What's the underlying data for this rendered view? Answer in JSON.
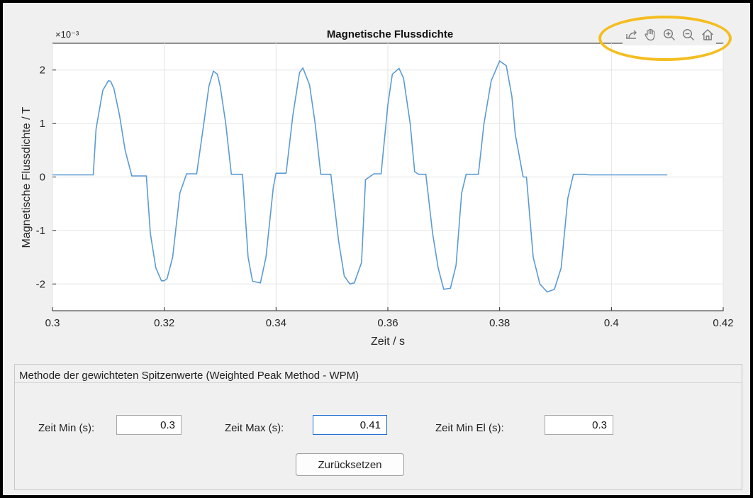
{
  "chart_data": {
    "type": "line",
    "title": "Magnetische Flussdichte",
    "xlabel": "Zeit / s",
    "ylabel": "Magnetische Flussdichte / T",
    "y_exponent_label": "×10⁻³",
    "xlim": [
      0.3,
      0.42
    ],
    "ylim": [
      -2.5,
      2.5
    ],
    "y_scale_factor": 0.001,
    "xticks": [
      "0.3",
      "0.32",
      "0.34",
      "0.36",
      "0.38",
      "0.4",
      "0.42"
    ],
    "yticks": [
      "-2",
      "-1",
      "0",
      "1",
      "2"
    ],
    "grid": true,
    "line_color": "#5b9bd5",
    "series": [
      {
        "x": [
          0.3,
          0.3073,
          0.3078,
          0.309,
          0.31,
          0.3104,
          0.311,
          0.312,
          0.313,
          0.3142,
          0.3148,
          0.3158,
          0.3168,
          0.3175,
          0.3185,
          0.3195,
          0.32,
          0.3205,
          0.3215,
          0.3228,
          0.324,
          0.3248,
          0.3258,
          0.327,
          0.328,
          0.3288,
          0.3295,
          0.33,
          0.331,
          0.332,
          0.3332,
          0.334,
          0.335,
          0.3358,
          0.3372,
          0.3382,
          0.3395,
          0.34,
          0.3408,
          0.3418,
          0.343,
          0.3442,
          0.3448,
          0.346,
          0.347,
          0.348,
          0.349,
          0.3498,
          0.3512,
          0.3522,
          0.3532,
          0.354,
          0.3553,
          0.356,
          0.3575,
          0.3588,
          0.36,
          0.3608,
          0.362,
          0.3628,
          0.364,
          0.3648,
          0.3655,
          0.3668,
          0.368,
          0.369,
          0.37,
          0.3712,
          0.3722,
          0.3732,
          0.374,
          0.3753,
          0.3762,
          0.3772,
          0.3785,
          0.38,
          0.3812,
          0.3822,
          0.3828,
          0.3842,
          0.3848,
          0.386,
          0.3872,
          0.3885,
          0.3898,
          0.391,
          0.3922,
          0.3932,
          0.394,
          0.3952,
          0.396,
          0.3975,
          0.3988,
          0.4,
          0.4015,
          0.403,
          0.404,
          0.405,
          0.41
        ],
        "y": [
          0.04,
          0.04,
          0.9,
          1.62,
          1.8,
          1.79,
          1.65,
          1.15,
          0.5,
          0.02,
          0.02,
          0.02,
          0.02,
          -1.05,
          -1.7,
          -1.94,
          -1.94,
          -1.9,
          -1.5,
          -0.3,
          0.06,
          0.06,
          0.06,
          0.95,
          1.7,
          1.98,
          1.92,
          1.7,
          1.0,
          0.05,
          0.05,
          0.05,
          -1.5,
          -1.95,
          -1.98,
          -1.5,
          -0.2,
          0.07,
          0.07,
          0.07,
          1.15,
          1.95,
          2.04,
          1.72,
          1.0,
          0.05,
          0.05,
          0.05,
          -1.2,
          -1.85,
          -2.0,
          -1.98,
          -1.6,
          -0.05,
          0.06,
          0.06,
          1.35,
          1.92,
          2.03,
          1.85,
          1.0,
          0.1,
          0.05,
          0.05,
          -1.05,
          -1.7,
          -2.1,
          -2.08,
          -1.65,
          -0.3,
          0.05,
          0.05,
          0.05,
          1.0,
          1.8,
          2.17,
          2.08,
          1.5,
          0.8,
          0.0,
          0.0,
          -1.5,
          -2.0,
          -2.15,
          -2.1,
          -1.7,
          -0.4,
          0.05,
          0.05,
          0.05,
          0.04,
          0.04,
          0.04,
          0.04,
          0.04,
          0.04,
          0.04,
          0.04,
          0.04
        ]
      }
    ]
  },
  "toolbar": {
    "buttons": [
      {
        "name": "export-icon"
      },
      {
        "name": "pan-hand-icon"
      },
      {
        "name": "zoom-in-icon"
      },
      {
        "name": "zoom-out-icon"
      },
      {
        "name": "home-restore-icon"
      }
    ],
    "highlight_color": "#f5bd1f"
  },
  "panel": {
    "title": "Methode der gewichteten Spitzenwerte (Weighted Peak Method - WPM)",
    "zeit_min_label": "Zeit Min (s):",
    "zeit_min_value": "0.3",
    "zeit_max_label": "Zeit Max (s):",
    "zeit_max_value": "0.41",
    "zeit_min_el_label": "Zeit Min El (s):",
    "zeit_min_el_value": "0.3",
    "reset_label": "Zurücksetzen"
  }
}
